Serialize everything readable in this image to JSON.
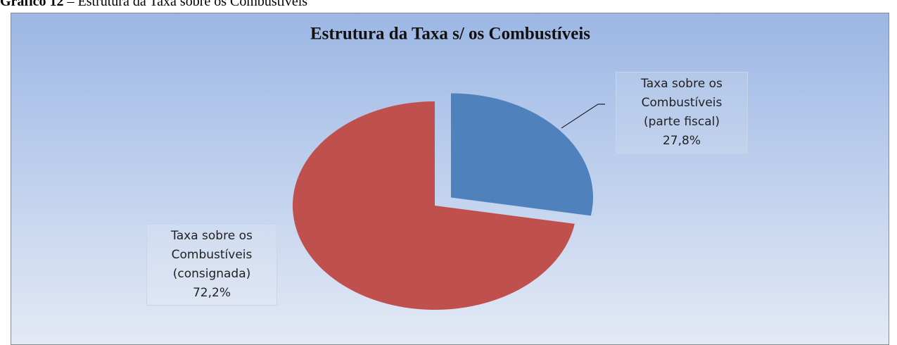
{
  "caption": {
    "number": "Gráfico 12",
    "text": "– Estrutura da Taxa sobre os Combustíveis"
  },
  "chart_data": {
    "type": "pie",
    "title": "Estrutura da Taxa s/ os Combustíveis",
    "categories": [
      "Taxa sobre os Combustíveis (parte fiscal)",
      "Taxa sobre os Combustíveis (consignada)"
    ],
    "values": [
      27.8,
      72.2
    ],
    "value_labels": [
      "27,8%",
      "72,2%"
    ],
    "colors": [
      "#4f81bd",
      "#c0504d"
    ],
    "exploded": [
      true,
      false
    ]
  }
}
